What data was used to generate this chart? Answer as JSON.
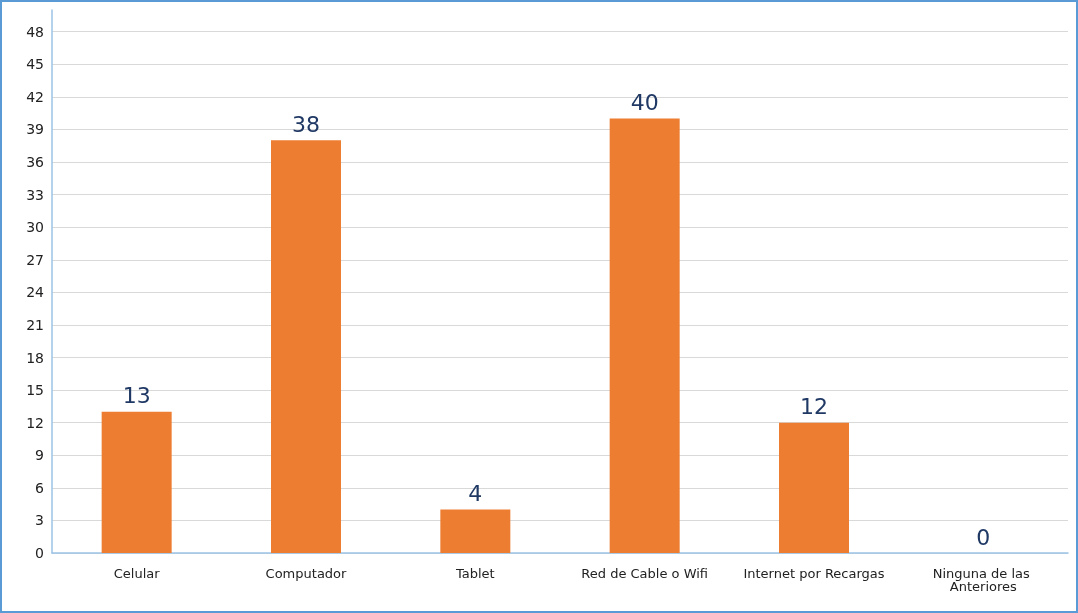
{
  "chart_data": {
    "type": "bar",
    "categories": [
      "Celular",
      "Computador",
      "Tablet",
      "Red de Cable o Wifi",
      "Internet por Recargas",
      "Ninguna de las Anteriores"
    ],
    "values": [
      13,
      38,
      4,
      40,
      12,
      0
    ],
    "color": "#ed7d31",
    "ylim": [
      0,
      50
    ],
    "yticks": [
      0,
      3,
      6,
      9,
      12,
      15,
      18,
      21,
      24,
      27,
      30,
      33,
      36,
      39,
      42,
      45,
      48
    ],
    "grid": "y",
    "data_labels": true
  }
}
